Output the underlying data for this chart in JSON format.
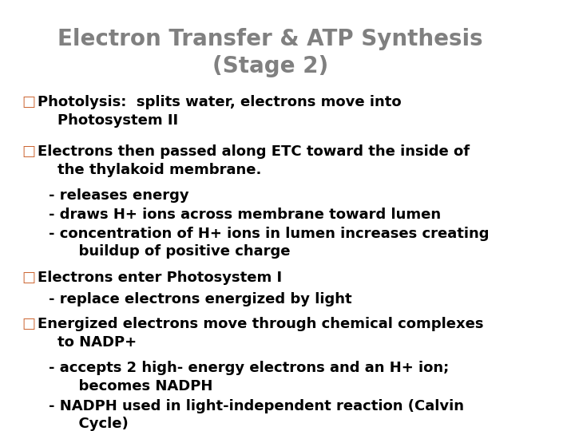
{
  "title": "Electron Transfer & ATP Synthesis\n(Stage 2)",
  "title_color": "#808080",
  "background_color": "#ffffff",
  "border_color": "#aaaaaa",
  "bullet_color": "#cc6633",
  "text_color": "#000000",
  "bullet_char": "□",
  "bullets": [
    {
      "main": "Photolysis:  splits water, electrons move into\n    Photosystem II",
      "subs": []
    },
    {
      "main": "Electrons then passed along ETC toward the inside of\n    the thylakoid membrane.",
      "subs": [
        "- releases energy",
        "- draws H+ ions across membrane toward lumen",
        "- concentration of H+ ions in lumen increases creating\n      buildup of positive charge"
      ]
    },
    {
      "main": "Electrons enter Photosystem I",
      "subs": [
        "- replace electrons energized by light"
      ]
    },
    {
      "main": "Energized electrons move through chemical complexes\n    to NADP+",
      "subs": [
        "- accepts 2 high- energy electrons and an H+ ion;\n      becomes NADPH",
        "- NADPH used in light-independent reaction (Calvin\n      Cycle)"
      ]
    }
  ],
  "figsize": [
    7.2,
    5.4
  ],
  "dpi": 100
}
